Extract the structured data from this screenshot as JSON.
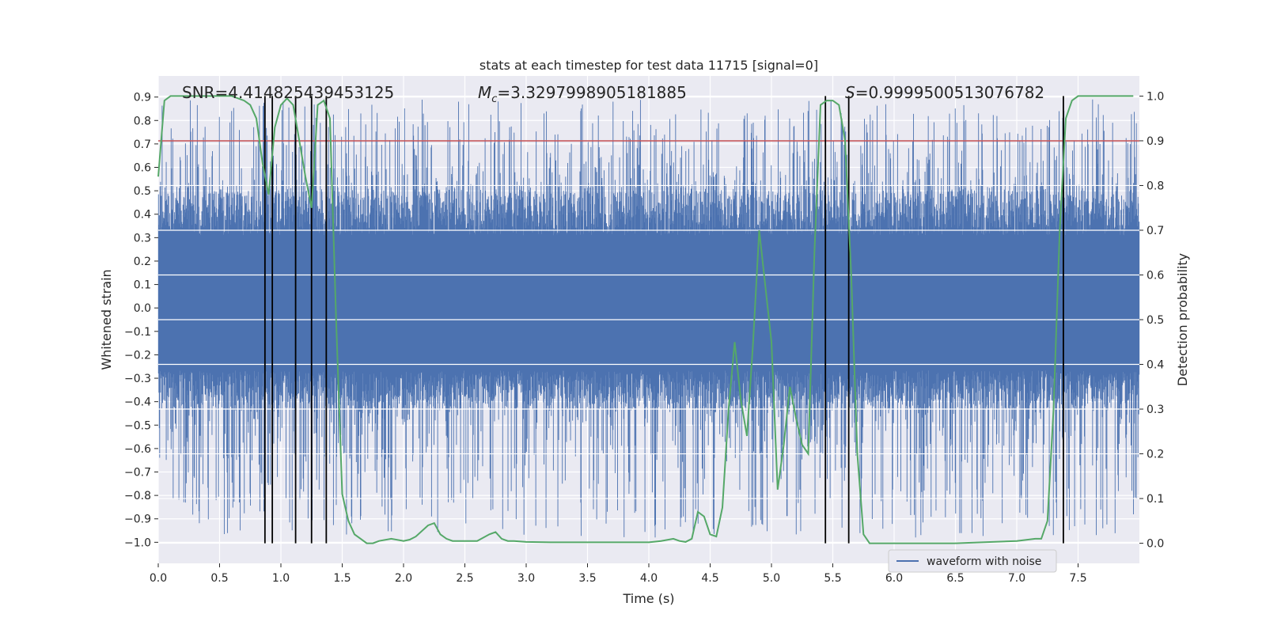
{
  "chart_data": {
    "type": "line",
    "title": "stats at each timestep for test data 11715 [signal=0]",
    "xlabel": "Time (s)",
    "ylabel": "Whitened strain",
    "y2label": "Detection probability",
    "xlim": [
      0.0,
      8.0
    ],
    "ylim": [
      -1.09,
      0.99
    ],
    "y2lim": [
      -0.045,
      1.045
    ],
    "x_ticks": [
      0.0,
      0.5,
      1.0,
      1.5,
      2.0,
      2.5,
      3.0,
      3.5,
      4.0,
      4.5,
      5.0,
      5.5,
      6.0,
      6.5,
      7.0,
      7.5
    ],
    "x_tick_labels": [
      "0.0",
      "0.5",
      "1.0",
      "1.5",
      "2.0",
      "2.5",
      "3.0",
      "3.5",
      "4.0",
      "4.5",
      "5.0",
      "5.5",
      "6.0",
      "6.5",
      "7.0",
      "7.5"
    ],
    "y_ticks": [
      0.9,
      0.8,
      0.7,
      0.6,
      0.5,
      0.4,
      0.3,
      0.2,
      0.1,
      0.0,
      -0.1,
      -0.2,
      -0.3,
      -0.4,
      -0.5,
      -0.6,
      -0.7,
      -0.8,
      -0.9,
      -1.0
    ],
    "y_tick_labels": [
      "0.9",
      "0.8",
      "0.7",
      "0.6",
      "0.5",
      "0.4",
      "0.3",
      "0.2",
      "0.1",
      "0.0",
      "−0.1",
      "−0.2",
      "−0.3",
      "−0.4",
      "−0.5",
      "−0.6",
      "−0.7",
      "−0.8",
      "−0.9",
      "−1.0"
    ],
    "y2_ticks": [
      1.0,
      0.9,
      0.8,
      0.7,
      0.6,
      0.5,
      0.4,
      0.3,
      0.2,
      0.1,
      0.0
    ],
    "y2_tick_labels": [
      "1.0",
      "0.9",
      "0.8",
      "0.7",
      "0.6",
      "0.5",
      "0.4",
      "0.3",
      "0.2",
      "0.1",
      "0.0"
    ],
    "annotations": {
      "snr_label": "SNR=4.414825439453125",
      "mc_symbol": "M",
      "mc_sub": "c",
      "mc_value": "=3.3297998905181885",
      "s_symbol": "S",
      "s_value": "=0.9999500513076782"
    },
    "legend": [
      {
        "label": "waveform with noise",
        "color": "#4c72b0"
      }
    ],
    "waveform": {
      "name": "waveform with noise",
      "color": "#4c72b0",
      "core_range": [
        -0.43,
        0.5
      ],
      "peak_range": [
        -0.98,
        0.89
      ]
    },
    "threshold": {
      "y2": 0.9,
      "color": "#c44e52"
    },
    "vlines_x": [
      0.87,
      0.93,
      1.12,
      1.25,
      1.37,
      5.44,
      5.63,
      7.38
    ],
    "vline_y2_range": [
      0.0,
      1.0
    ],
    "detection_probability": {
      "color": "#55a868",
      "x": [
        0.0,
        0.05,
        0.1,
        0.2,
        0.3,
        0.4,
        0.5,
        0.6,
        0.7,
        0.75,
        0.8,
        0.85,
        0.9,
        0.95,
        1.0,
        1.05,
        1.1,
        1.15,
        1.2,
        1.25,
        1.3,
        1.35,
        1.4,
        1.45,
        1.5,
        1.55,
        1.6,
        1.65,
        1.7,
        1.75,
        1.8,
        1.9,
        2.0,
        2.05,
        2.1,
        2.2,
        2.25,
        2.3,
        2.35,
        2.4,
        2.5,
        2.6,
        2.7,
        2.75,
        2.8,
        2.85,
        2.9,
        3.0,
        3.2,
        3.5,
        3.8,
        4.0,
        4.1,
        4.2,
        4.25,
        4.3,
        4.35,
        4.4,
        4.45,
        4.5,
        4.55,
        4.6,
        4.65,
        4.7,
        4.75,
        4.8,
        4.85,
        4.9,
        5.0,
        5.05,
        5.1,
        5.15,
        5.2,
        5.25,
        5.3,
        5.35,
        5.4,
        5.45,
        5.5,
        5.55,
        5.6,
        5.65,
        5.7,
        5.75,
        5.8,
        5.85,
        5.9,
        6.0,
        6.5,
        7.0,
        7.15,
        7.2,
        7.25,
        7.3,
        7.35,
        7.4,
        7.45,
        7.5,
        7.6,
        7.8,
        7.95
      ],
      "y": [
        0.82,
        0.99,
        1.0,
        1.0,
        1.0,
        1.0,
        1.0,
        1.0,
        0.99,
        0.98,
        0.95,
        0.85,
        0.78,
        0.93,
        0.98,
        0.995,
        0.98,
        0.9,
        0.82,
        0.75,
        0.98,
        0.99,
        0.95,
        0.5,
        0.11,
        0.05,
        0.02,
        0.01,
        0.0,
        0.0,
        0.005,
        0.01,
        0.005,
        0.008,
        0.015,
        0.04,
        0.045,
        0.02,
        0.01,
        0.005,
        0.005,
        0.005,
        0.02,
        0.025,
        0.01,
        0.005,
        0.005,
        0.003,
        0.002,
        0.002,
        0.002,
        0.002,
        0.005,
        0.01,
        0.005,
        0.003,
        0.01,
        0.07,
        0.06,
        0.02,
        0.015,
        0.08,
        0.3,
        0.45,
        0.32,
        0.24,
        0.45,
        0.7,
        0.45,
        0.12,
        0.22,
        0.35,
        0.28,
        0.22,
        0.2,
        0.65,
        0.98,
        0.99,
        0.99,
        0.98,
        0.9,
        0.6,
        0.2,
        0.02,
        0.0,
        0.0,
        0.0,
        0.0,
        0.0,
        0.005,
        0.01,
        0.01,
        0.05,
        0.3,
        0.7,
        0.95,
        0.99,
        1.0,
        1.0,
        1.0,
        1.0
      ]
    }
  }
}
